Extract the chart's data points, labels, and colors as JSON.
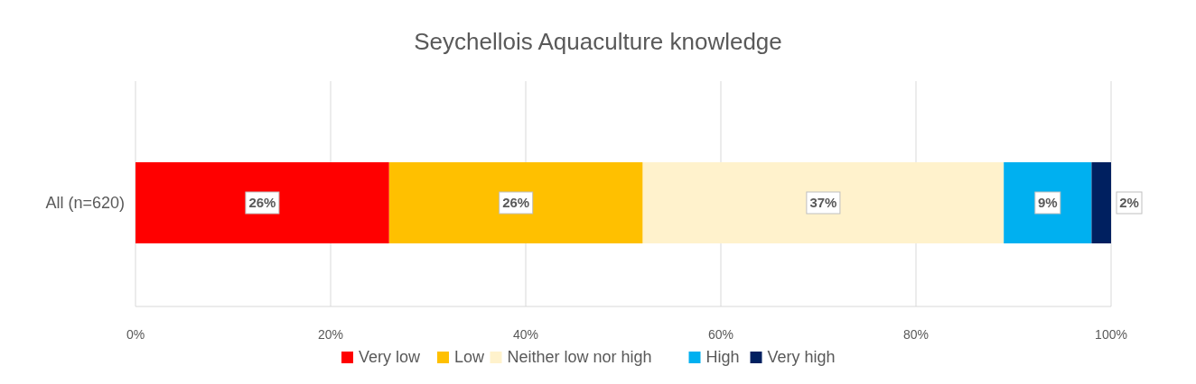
{
  "chart_data": {
    "type": "bar",
    "orientation": "horizontal",
    "stacked": true,
    "title": "Seychellois Aquaculture knowledge",
    "categories": [
      "All (n=620)"
    ],
    "series": [
      {
        "name": "Very low",
        "color": "#ff0000",
        "values": [
          26
        ],
        "value_labels": [
          "26%"
        ]
      },
      {
        "name": "Low",
        "color": "#ffc000",
        "values": [
          26
        ],
        "value_labels": [
          "26%"
        ]
      },
      {
        "name": "Neither low nor high",
        "color": "#fff2cc",
        "values": [
          37
        ],
        "value_labels": [
          "37%"
        ]
      },
      {
        "name": "High",
        "color": "#00b0f0",
        "values": [
          9
        ],
        "value_labels": [
          "9%"
        ]
      },
      {
        "name": "Very high",
        "color": "#002060",
        "values": [
          2
        ],
        "value_labels": [
          "2%"
        ]
      }
    ],
    "xlim": [
      0,
      100
    ],
    "xticks": [
      {
        "value": 0,
        "label": "0%"
      },
      {
        "value": 20,
        "label": "20%"
      },
      {
        "value": 40,
        "label": "40%"
      },
      {
        "value": 60,
        "label": "60%"
      },
      {
        "value": 80,
        "label": "80%"
      },
      {
        "value": 100,
        "label": "100%"
      }
    ],
    "grid": "x",
    "legend": "bottom"
  }
}
